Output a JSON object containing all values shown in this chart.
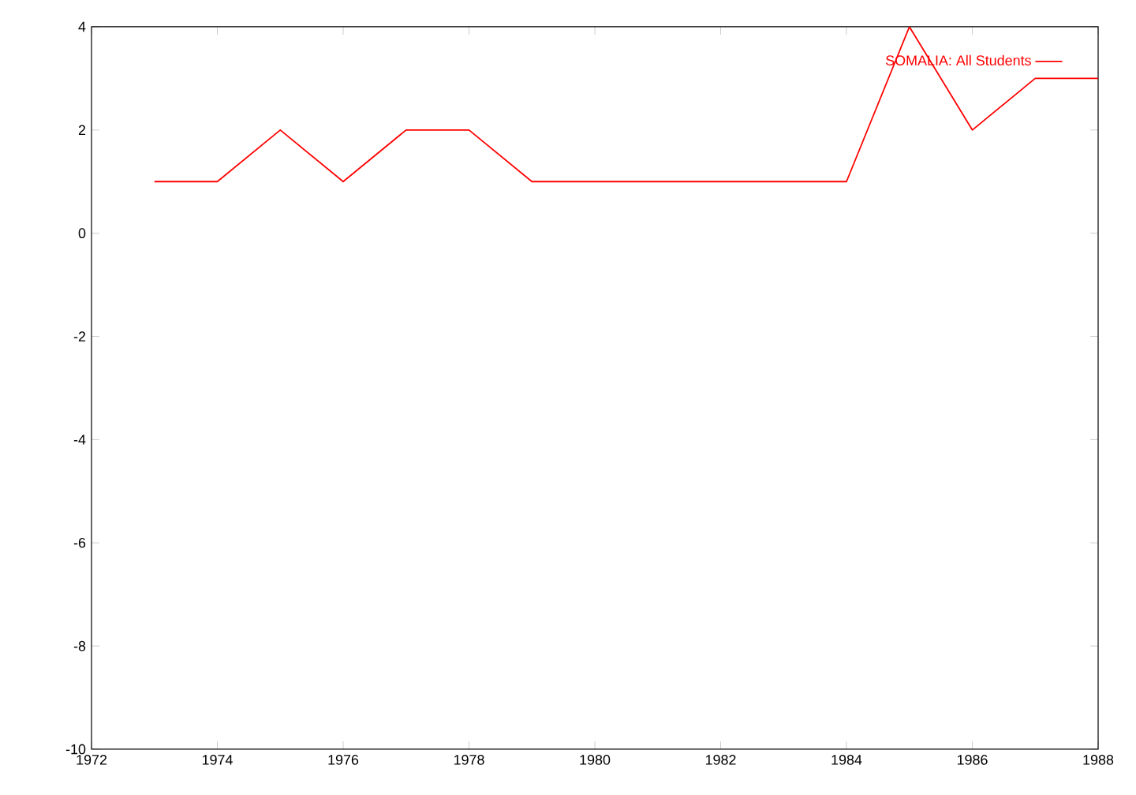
{
  "chart_data": {
    "type": "line",
    "x": [
      1973,
      1974,
      1975,
      1976,
      1977,
      1978,
      1979,
      1980,
      1981,
      1982,
      1983,
      1984,
      1985,
      1986,
      1987,
      1988
    ],
    "series": [
      {
        "name": "SOMALIA: All Students",
        "color": "#ff0000",
        "values": [
          1,
          1,
          2,
          1,
          2,
          2,
          1,
          1,
          1,
          1,
          1,
          1,
          4,
          2,
          3,
          3
        ]
      }
    ],
    "xlim": [
      1972,
      1988
    ],
    "xticks": [
      1972,
      1974,
      1976,
      1978,
      1980,
      1982,
      1984,
      1986,
      1988
    ],
    "ylim": [
      -10,
      4
    ],
    "yticks": [
      -10,
      -8,
      -6,
      -4,
      -2,
      0,
      2,
      4
    ],
    "legend": "top right",
    "grid": false,
    "marker": "none",
    "line_style": "solid"
  }
}
